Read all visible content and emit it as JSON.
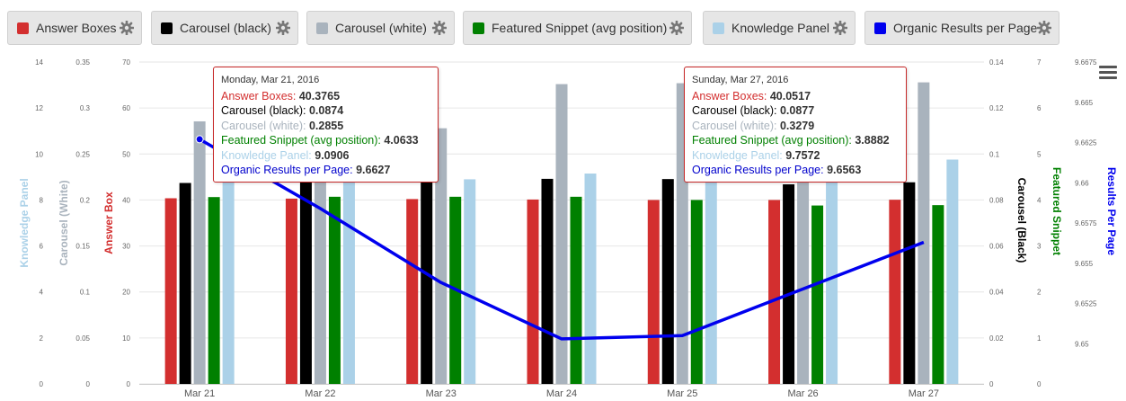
{
  "legend": [
    {
      "label": "Answer Boxes",
      "color": "#d32f2f",
      "icon": "gear-icon"
    },
    {
      "label": "Carousel (black)",
      "color": "#000000",
      "icon": "gear-icon"
    },
    {
      "label": "Carousel (white)",
      "color": "#a9b3bd",
      "icon": "gear-icon"
    },
    {
      "label": "Featured Snippet (avg position)",
      "color": "#008000",
      "icon": "gear-icon"
    },
    {
      "label": "Knowledge Panel",
      "color": "#abd1e8",
      "icon": "gear-icon"
    },
    {
      "label": "Organic Results per Page",
      "color": "#0000ee",
      "icon": "gear-icon"
    }
  ],
  "menu_icon": "hamburger-menu-icon",
  "tooltips": [
    {
      "date": "Monday, Mar 21, 2016",
      "rows": [
        {
          "label": "Answer Boxes: ",
          "value": "40.3765",
          "color": "#d32f2f"
        },
        {
          "label": "Carousel (black): ",
          "value": "0.0874",
          "color": "#000000"
        },
        {
          "label": "Carousel (white): ",
          "value": "0.2855",
          "color": "#a9b3bd"
        },
        {
          "label": "Featured Snippet (avg position): ",
          "value": "4.0633",
          "color": "#008000"
        },
        {
          "label": "Knowledge Panel: ",
          "value": "9.0906",
          "color": "#abd1e8"
        },
        {
          "label": "Organic Results per Page: ",
          "value": "9.6627",
          "color": "#0000cc"
        }
      ]
    },
    {
      "date": "Sunday, Mar 27, 2016",
      "rows": [
        {
          "label": "Answer Boxes: ",
          "value": "40.0517",
          "color": "#d32f2f"
        },
        {
          "label": "Carousel (black): ",
          "value": "0.0877",
          "color": "#000000"
        },
        {
          "label": "Carousel (white): ",
          "value": "0.3279",
          "color": "#a9b3bd"
        },
        {
          "label": "Featured Snippet (avg position): ",
          "value": "3.8882",
          "color": "#008000"
        },
        {
          "label": "Knowledge Panel: ",
          "value": "9.7572",
          "color": "#abd1e8"
        },
        {
          "label": "Organic Results per Page: ",
          "value": "9.6563",
          "color": "#0000cc"
        }
      ]
    }
  ],
  "chart_data": {
    "type": "bar",
    "categories": [
      "Mar 21",
      "Mar 22",
      "Mar 23",
      "Mar 24",
      "Mar 25",
      "Mar 26",
      "Mar 27"
    ],
    "grid": true,
    "axes": {
      "knowledge": {
        "title": "Knowledge Panel",
        "color": "#abd1e8",
        "range": [
          0,
          14
        ],
        "ticks": [
          "0",
          "2",
          "4",
          "6",
          "8",
          "10",
          "12",
          "14"
        ]
      },
      "carousel_white": {
        "title": "Carousel (White)",
        "color": "#a9b3bd",
        "range": [
          0,
          0.35
        ],
        "ticks": [
          "0",
          "0.05",
          "0.1",
          "0.15",
          "0.2",
          "0.25",
          "0.3",
          "0.35"
        ]
      },
      "answer": {
        "title": "Answer Box",
        "color": "#d32f2f",
        "range": [
          0,
          70
        ],
        "ticks": [
          "0",
          "10",
          "20",
          "30",
          "40",
          "50",
          "60",
          "70"
        ]
      },
      "carousel_black": {
        "title": "Carousel (Black)",
        "color": "#000000",
        "range": [
          0,
          0.14
        ],
        "ticks": [
          "0",
          "0.02",
          "0.04",
          "0.06",
          "0.08",
          "0.1",
          "0.12",
          "0.14"
        ]
      },
      "featured": {
        "title": "Featured Snippet",
        "color": "#008000",
        "range": [
          0,
          7
        ],
        "ticks": [
          "0",
          "1",
          "2",
          "3",
          "4",
          "5",
          "6",
          "7"
        ]
      },
      "organic": {
        "title": "Results Per Page",
        "color": "#0000ee",
        "range": [
          9.6475,
          9.6675
        ],
        "ticks": [
          "9.65",
          "9.6525",
          "9.655",
          "9.6575",
          "9.66",
          "9.6625",
          "9.665",
          "9.6675"
        ]
      }
    },
    "series": [
      {
        "name": "Answer Boxes",
        "axis": "answer",
        "kind": "bar",
        "color": "#d32f2f",
        "values": [
          40.3765,
          40.3,
          40.2,
          40.1,
          40.0,
          40.0,
          40.0517
        ]
      },
      {
        "name": "Carousel (black)",
        "axis": "carousel_black",
        "kind": "bar",
        "color": "#000000",
        "values": [
          0.0874,
          0.0885,
          0.0895,
          0.0892,
          0.0891,
          0.0868,
          0.0877
        ]
      },
      {
        "name": "Carousel (white)",
        "axis": "carousel_white",
        "kind": "bar",
        "color": "#a9b3bd",
        "values": [
          0.2855,
          0.299,
          0.278,
          0.326,
          0.327,
          0.327,
          0.3279
        ]
      },
      {
        "name": "Featured Snippet (avg position)",
        "axis": "featured",
        "kind": "bar",
        "color": "#008000",
        "values": [
          4.0633,
          4.07,
          4.07,
          4.07,
          4.0,
          3.88,
          3.8882
        ]
      },
      {
        "name": "Knowledge Panel",
        "axis": "knowledge",
        "kind": "bar",
        "color": "#abd1e8",
        "values": [
          9.0906,
          9.1,
          8.9,
          9.15,
          9.2,
          9.3,
          9.7572
        ]
      },
      {
        "name": "Organic Results per Page",
        "axis": "organic",
        "kind": "line",
        "color": "#0000ee",
        "values": [
          9.6627,
          9.6584,
          9.6538,
          9.6503,
          9.6505,
          9.6534,
          9.6563
        ]
      }
    ]
  }
}
